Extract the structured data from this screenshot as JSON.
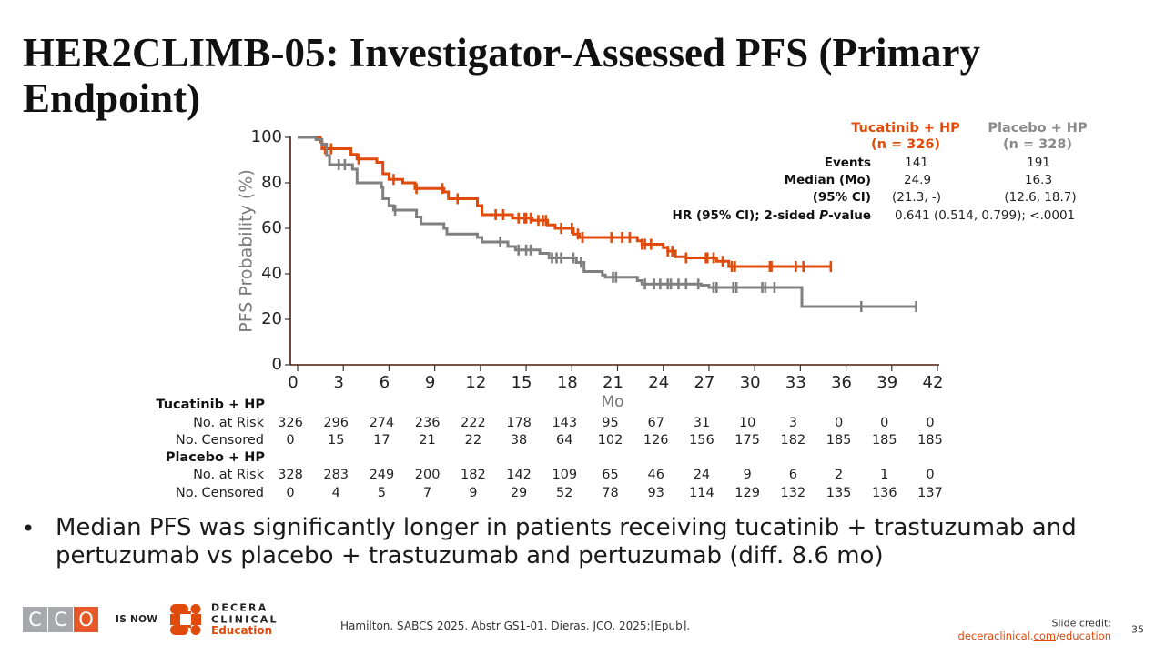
{
  "title": "HER2CLIMB-05: Investigator-Assessed PFS (Primary Endpoint)",
  "summary_table": {
    "columns": [
      {
        "name": "Tucatinib + HP",
        "n": "(n = 326)",
        "color": "#e04a0a"
      },
      {
        "name": "Placebo + HP",
        "n": "(n = 328)",
        "color": "#8a8a8a"
      }
    ],
    "rows": [
      {
        "label": "Events",
        "values": [
          "141",
          "191"
        ]
      },
      {
        "label": "Median (Mo)",
        "values": [
          "24.9",
          "16.3"
        ]
      },
      {
        "label": "(95% CI)",
        "values": [
          "(21.3, -)",
          "(12.6, 18.7)"
        ]
      }
    ],
    "hr": {
      "label_prefix": "HR (95% CI); 2-sided ",
      "label_italic": "P",
      "label_suffix": "-value",
      "value": "0.641 (0.514, 0.799); <.0001"
    }
  },
  "chart_data": {
    "type": "line",
    "subtype": "kaplan-meier step",
    "title": "",
    "xlabel": "Mo",
    "ylabel": "PFS Probability (%)",
    "xlim": [
      0,
      42
    ],
    "ylim": [
      0,
      100
    ],
    "xticks": [
      0,
      3,
      6,
      9,
      12,
      15,
      18,
      21,
      24,
      27,
      30,
      33,
      36,
      39,
      42
    ],
    "yticks": [
      0,
      20,
      40,
      60,
      80,
      100
    ],
    "grid": false,
    "legend": "none (labels in summary table, top-right)",
    "series": [
      {
        "name": "Tucatinib + HP",
        "color": "#e04a0a",
        "steps": [
          [
            0,
            100
          ],
          [
            1.5,
            98
          ],
          [
            1.6,
            95
          ],
          [
            3.5,
            92.5
          ],
          [
            3.9,
            90.5
          ],
          [
            5.2,
            89
          ],
          [
            5.6,
            84
          ],
          [
            6.0,
            81.5
          ],
          [
            6.9,
            80
          ],
          [
            7.7,
            77.5
          ],
          [
            9.6,
            76
          ],
          [
            9.9,
            73
          ],
          [
            11.8,
            70
          ],
          [
            12.1,
            66
          ],
          [
            14.1,
            64.5
          ],
          [
            15.4,
            63.5
          ],
          [
            16.4,
            61.5
          ],
          [
            16.9,
            60
          ],
          [
            18.1,
            57.5
          ],
          [
            18.5,
            56
          ],
          [
            22.3,
            54.5
          ],
          [
            22.6,
            53
          ],
          [
            24.0,
            51.5
          ],
          [
            24.3,
            50
          ],
          [
            24.8,
            47.5
          ],
          [
            25.5,
            47
          ],
          [
            27.5,
            45.5
          ],
          [
            28.3,
            43.2
          ],
          [
            35.0,
            43.2
          ]
        ],
        "censored": [
          1.8,
          2.2,
          4.0,
          6.3,
          7.8,
          9.5,
          10.5,
          13.0,
          13.5,
          14.5,
          14.9,
          15.0,
          15.3,
          15.8,
          16.1,
          16.3,
          17.3,
          18.0,
          18.4,
          18.7,
          20.6,
          21.3,
          21.8,
          22.6,
          22.8,
          23.2,
          24.3,
          24.6,
          25.5,
          26.8,
          26.9,
          27.3,
          27.9,
          28.5,
          28.7,
          31.0,
          31.1,
          32.7,
          33.2,
          35.0
        ]
      },
      {
        "name": "Placebo + HP",
        "color": "#808080",
        "steps": [
          [
            0,
            100
          ],
          [
            1.2,
            99
          ],
          [
            1.6,
            97
          ],
          [
            1.9,
            92
          ],
          [
            2.1,
            88
          ],
          [
            3.6,
            86
          ],
          [
            3.9,
            80
          ],
          [
            5.5,
            78
          ],
          [
            5.6,
            73
          ],
          [
            6.0,
            70
          ],
          [
            6.3,
            68
          ],
          [
            7.8,
            65
          ],
          [
            8.1,
            62
          ],
          [
            9.6,
            60
          ],
          [
            9.8,
            57.5
          ],
          [
            11.8,
            56
          ],
          [
            12.1,
            54
          ],
          [
            13.8,
            52
          ],
          [
            14.3,
            50.5
          ],
          [
            15.9,
            49
          ],
          [
            16.5,
            47
          ],
          [
            18.3,
            45
          ],
          [
            18.8,
            41
          ],
          [
            20.0,
            39.5
          ],
          [
            20.2,
            38.5
          ],
          [
            22.3,
            37
          ],
          [
            22.6,
            35.5
          ],
          [
            26.5,
            35
          ],
          [
            27.0,
            34
          ],
          [
            33.0,
            34
          ],
          [
            33.1,
            25.6
          ],
          [
            40.6,
            25.6
          ]
        ],
        "censored": [
          2.7,
          3.1,
          6.4,
          13.3,
          14.5,
          15.0,
          15.3,
          16.7,
          17.0,
          17.3,
          18.1,
          18.6,
          20.7,
          20.9,
          22.8,
          23.4,
          23.8,
          24.3,
          24.5,
          25.0,
          25.5,
          26.3,
          27.3,
          27.5,
          28.6,
          28.8,
          30.5,
          30.7,
          31.3,
          37.0,
          40.6
        ]
      }
    ]
  },
  "risk_table": {
    "groups": [
      {
        "name": "Tucatinib + HP",
        "rows": [
          {
            "label": "No. at Risk",
            "values": [
              "326",
              "296",
              "274",
              "236",
              "222",
              "178",
              "143",
              "95",
              "67",
              "31",
              "10",
              "3",
              "0",
              "0",
              "0"
            ]
          },
          {
            "label": "No. Censored",
            "values": [
              "0",
              "15",
              "17",
              "21",
              "22",
              "38",
              "64",
              "102",
              "126",
              "156",
              "175",
              "182",
              "185",
              "185",
              "185"
            ]
          }
        ]
      },
      {
        "name": "Placebo + HP",
        "rows": [
          {
            "label": "No. at Risk",
            "values": [
              "328",
              "283",
              "249",
              "200",
              "182",
              "142",
              "109",
              "65",
              "46",
              "24",
              "9",
              "6",
              "2",
              "1",
              "0"
            ]
          },
          {
            "label": "No. Censored",
            "values": [
              "0",
              "4",
              "5",
              "7",
              "9",
              "29",
              "52",
              "78",
              "93",
              "114",
              "129",
              "132",
              "135",
              "136",
              "137"
            ]
          }
        ]
      }
    ]
  },
  "bullet": {
    "marker": "•",
    "text": "Median PFS was significantly longer in patients receiving tucatinib + trastuzumab and pertuzumab vs placebo + trastuzumab and pertuzumab (diff. 8.6 mo)"
  },
  "footer": {
    "cco_letters": [
      "C",
      "C",
      "O"
    ],
    "cco_colors": [
      "#a7a9ac",
      "#a7a9ac",
      "#e8592a"
    ],
    "is_now": "IS NOW",
    "decera_logo": {
      "line1": "DECERA",
      "line2": "CLINICAL",
      "line3": "Education"
    },
    "citation": "Hamilton. SABCS 2025. Abstr GS1-01. Dieras. JCO. 2025;[Epub].",
    "slide_credit_label": "Slide credit:",
    "slide_credit_link": {
      "part1": "deceraclinical.",
      "part2": "com",
      "part3": "/education"
    },
    "page_number": "35"
  }
}
